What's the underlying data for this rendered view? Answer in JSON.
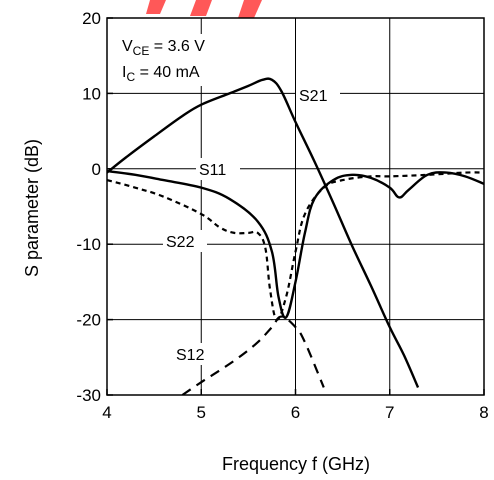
{
  "chart_data": {
    "type": "line",
    "title": "",
    "xlabel": "Frequency f (GHz)",
    "ylabel": "S parameter (dB)",
    "xlim": [
      4,
      8
    ],
    "ylim": [
      -30,
      20
    ],
    "x_ticks": [
      "4",
      "5",
      "6",
      "7",
      "8"
    ],
    "y_ticks": [
      "-30",
      "-20",
      "-10",
      "0",
      "10",
      "20"
    ],
    "grid": true,
    "annotation_lines": [
      "V",
      "CE",
      " = 3.6 V",
      "I",
      "C",
      " = 40 mA"
    ],
    "series": [
      {
        "name": "S21",
        "style": "solid",
        "x": [
          4.0,
          4.2,
          4.5,
          4.8,
          5.0,
          5.3,
          5.5,
          5.65,
          5.75,
          5.85,
          6.0,
          6.2,
          6.4,
          6.6,
          6.8,
          7.0,
          7.15,
          7.3
        ],
        "y": [
          -0.5,
          1.5,
          4.3,
          7.0,
          8.5,
          10.0,
          11.0,
          11.8,
          11.8,
          10.3,
          6.2,
          1.0,
          -4.5,
          -10.2,
          -15.5,
          -21.0,
          -24.7,
          -29.0
        ]
      },
      {
        "name": "S11",
        "style": "solid",
        "x": [
          4.0,
          4.3,
          4.6,
          5.0,
          5.3,
          5.6,
          5.75,
          5.82,
          5.9,
          6.0,
          6.1,
          6.2,
          6.4,
          6.6,
          6.8,
          7.0,
          7.1,
          7.2,
          7.4,
          7.6,
          7.8,
          8.0
        ],
        "y": [
          -0.3,
          -0.8,
          -1.5,
          -2.5,
          -4.0,
          -7.0,
          -11.0,
          -17.0,
          -19.7,
          -15.0,
          -8.5,
          -4.0,
          -1.5,
          -0.8,
          -1.2,
          -2.5,
          -3.8,
          -2.8,
          -0.8,
          -0.5,
          -1.0,
          -2.0
        ]
      },
      {
        "name": "S22",
        "style": "short-dash",
        "x": [
          4.0,
          4.3,
          4.6,
          5.0,
          5.2,
          5.35,
          5.5,
          5.6,
          5.68,
          5.73,
          5.8,
          5.9,
          6.0,
          6.1,
          6.3,
          6.5,
          6.8,
          7.0,
          7.4,
          7.8,
          8.0
        ],
        "y": [
          -1.5,
          -2.5,
          -3.7,
          -6.0,
          -7.8,
          -8.5,
          -8.5,
          -8.5,
          -10.5,
          -16.0,
          -20.0,
          -17.0,
          -11.0,
          -6.0,
          -2.5,
          -1.5,
          -1.0,
          -1.0,
          -0.8,
          -0.5,
          -0.5
        ]
      },
      {
        "name": "S12",
        "style": "long-dash",
        "x": [
          4.8,
          5.0,
          5.2,
          5.4,
          5.6,
          5.75,
          5.85,
          6.0,
          6.1,
          6.3
        ],
        "y": [
          -30.0,
          -28.3,
          -26.7,
          -25.0,
          -23.0,
          -21.0,
          -19.6,
          -21.0,
          -23.0,
          -29.0
        ]
      }
    ],
    "series_labels": [
      "S21",
      "S11",
      "S22",
      "S12"
    ]
  }
}
